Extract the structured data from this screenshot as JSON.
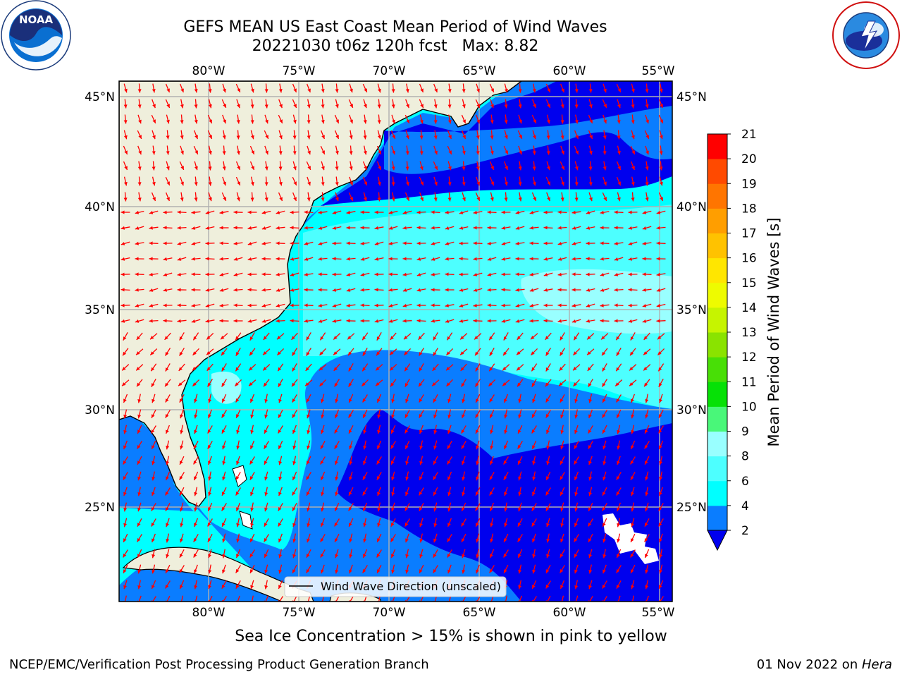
{
  "header": {
    "title_line1": "GEFS MEAN US East Coast Mean Period of Wind Waves",
    "title_line2": "20221030 t06z 120h fcst   Max: 8.82"
  },
  "logos": {
    "left_icon": "noaa-logo-icon",
    "left_text": "NOAA",
    "left_ring_text": "NATIONAL OCEANIC AND ATMOSPHERIC ADMINISTRATION · U.S. DEPARTMENT OF COMMERCE",
    "right_icon": "national-weather-service-logo-icon",
    "right_ring_text": "NATIONAL WEATHER SERVICE"
  },
  "map": {
    "lon_labels": [
      "80°W",
      "75°W",
      "70°W",
      "65°W",
      "60°W",
      "55°W"
    ],
    "lat_labels": [
      "45°N",
      "40°N",
      "35°N",
      "30°N",
      "25°N"
    ],
    "extent": {
      "lon_min": -85,
      "lon_max": -54.3,
      "lat_min": 20.5,
      "lat_max": 45.8
    },
    "legend_label": "Wind Wave Direction (unscaled)",
    "arrow_color": "#ff0000",
    "land_color": "#efefdc"
  },
  "colorbar": {
    "title": "Mean Period of Wind Waves [s]",
    "ticks": [
      "2",
      "4",
      "6",
      "8",
      "9",
      "10",
      "11",
      "12",
      "13",
      "14",
      "15",
      "16",
      "17",
      "18",
      "19",
      "20",
      "21"
    ],
    "colors": [
      "#0a7dff",
      "#00ffff",
      "#4dffff",
      "#99ffff",
      "#49f779",
      "#06e106",
      "#48df06",
      "#8ae300",
      "#c6f400",
      "#eefb00",
      "#ffe600",
      "#ffc200",
      "#ff9e00",
      "#ff7500",
      "#ff4a00",
      "#ff0000"
    ],
    "under_color": "#0000ee"
  },
  "subtitle": "Sea Ice Concentration > 15% is shown in pink to yellow",
  "footer": {
    "left": "NCEP/EMC/Verification Post Processing Product Generation Branch",
    "right_prefix": "01 Nov 2022 on ",
    "right_host": "Hera"
  }
}
